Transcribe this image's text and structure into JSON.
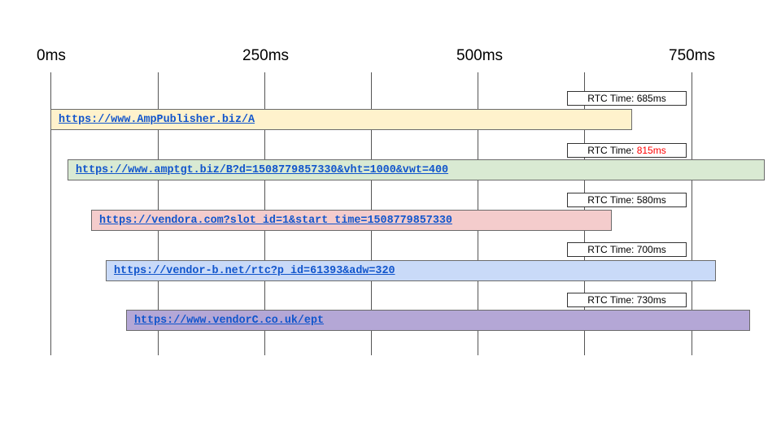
{
  "timeline": {
    "ticks": [
      {
        "label": "0ms"
      },
      {
        "label": "250ms"
      },
      {
        "label": "500ms"
      },
      {
        "label": "750ms"
      }
    ],
    "rows": [
      {
        "url": "https://www.AmpPublisher.biz/A",
        "rtc_prefix": "RTC Time: ",
        "rtc_value": "685ms",
        "rtc_value_color": "#000000",
        "bar_color": "#fff2cc"
      },
      {
        "url": "https://www.amptgt.biz/B?d=1508779857330&vht=1000&vwt=400",
        "rtc_prefix": "RTC Time: ",
        "rtc_value": "815ms",
        "rtc_value_color": "#ff0000",
        "bar_color": "#d9ead3"
      },
      {
        "url": "https://vendora.com?slot_id=1&start_time=1508779857330",
        "rtc_prefix": "RTC Time: ",
        "rtc_value": "580ms",
        "rtc_value_color": "#000000",
        "bar_color": "#f4cccc"
      },
      {
        "url": "https://vendor-b.net/rtc?p_id=61393&adw=320",
        "rtc_prefix": "RTC Time: ",
        "rtc_value": "700ms",
        "rtc_value_color": "#000000",
        "bar_color": "#c9daf8"
      },
      {
        "url": "https://www.vendorC.co.uk/ept",
        "rtc_prefix": "RTC Time: ",
        "rtc_value": "730ms",
        "rtc_value_color": "#000000",
        "bar_color": "#b4a7d6"
      }
    ]
  }
}
